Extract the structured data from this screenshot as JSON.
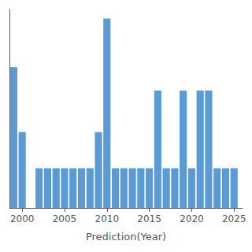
{
  "chart_data": {
    "type": "bar",
    "xlabel": "Prediction(Year)",
    "x": [
      1999,
      2000,
      2001,
      2002,
      2003,
      2004,
      2005,
      2006,
      2007,
      2008,
      2009,
      2010,
      2011,
      2012,
      2013,
      2014,
      2015,
      2016,
      2017,
      2018,
      2019,
      2020,
      2021,
      2022,
      2023,
      2024,
      2025
    ],
    "values": [
      7.8,
      4.2,
      0,
      2.2,
      2.2,
      2.2,
      2.2,
      2.2,
      2.2,
      2.2,
      4.2,
      10.5,
      2.2,
      2.2,
      2.2,
      2.2,
      2.2,
      6.5,
      2.2,
      2.2,
      6.5,
      2.2,
      6.5,
      6.5,
      2.2,
      2.2,
      2.2
    ],
    "color": "#5B9BD5",
    "xlim": [
      1998.5,
      2026.0
    ],
    "ylim": [
      0,
      11.0
    ],
    "xticks": [
      2000,
      2005,
      2010,
      2015,
      2020,
      2025
    ],
    "grid": false,
    "tick_labels": "x"
  }
}
